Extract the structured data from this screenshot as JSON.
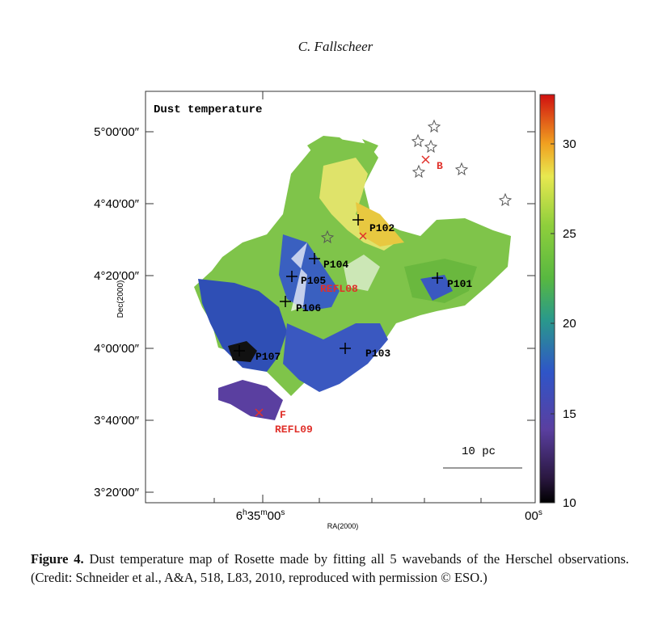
{
  "header": {
    "author": "C. Fallscheer"
  },
  "figure": {
    "panel_title": "Dust temperature",
    "y_axis_label": "Dec(2000)",
    "x_axis_label": "RA(2000)",
    "y_ticks": [
      "5°00′00″",
      "4°40′00″",
      "4°20′00″",
      "4°00′00″",
      "3°40′00″",
      "3°20′00″"
    ],
    "x_ticks": [
      [
        "6",
        "h",
        "35",
        "m",
        "00",
        "s"
      ],
      [
        "00",
        "s"
      ]
    ],
    "colorbar_ticks": [
      "30",
      "25",
      "20",
      "15",
      "10"
    ],
    "scale_bar": "10 pc",
    "sources": [
      "P102",
      "P104",
      "P105",
      "P106",
      "P101",
      "P103",
      "P107"
    ],
    "red_labels": [
      "B",
      "REFL08",
      "F",
      "REFL09"
    ]
  },
  "caption": {
    "label": "Figure 4.",
    "text": "Dust temperature map of Rosette made by fitting all 5 wavebands of the Herschel observations. (Credit: Schneider et al., A&A, 518, L83, 2010, reproduced with permission © ESO.)"
  }
}
